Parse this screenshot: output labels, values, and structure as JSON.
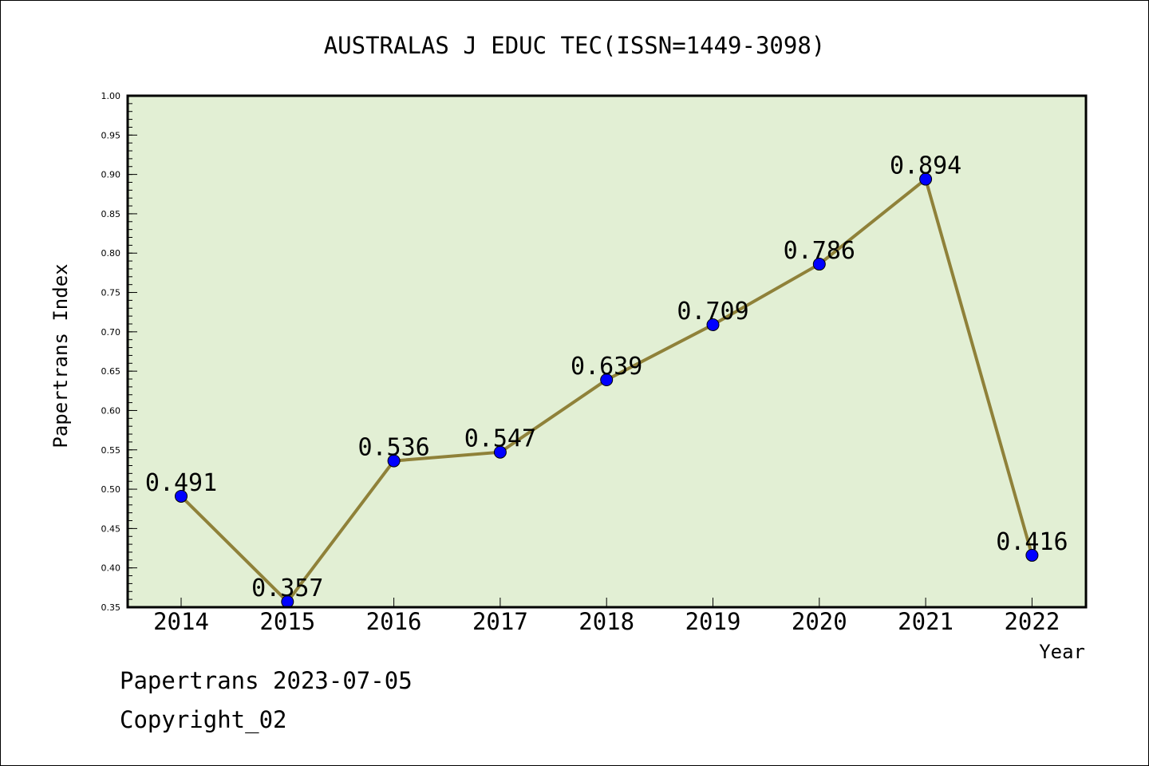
{
  "chart_data": {
    "type": "line",
    "title": "AUSTRALAS J EDUC TEC(ISSN=1449-3098)",
    "xlabel": "Year",
    "ylabel": "Papertrans Index",
    "categories": [
      "2014",
      "2015",
      "2016",
      "2017",
      "2018",
      "2019",
      "2020",
      "2021",
      "2022"
    ],
    "series": [
      {
        "values": [
          0.491,
          0.357,
          0.536,
          0.547,
          0.639,
          0.709,
          0.786,
          0.894,
          0.416
        ],
        "data_labels": [
          "0.491",
          "0.357",
          "0.536",
          "0.547",
          "0.639",
          "0.709",
          "0.786",
          "0.894",
          "0.416"
        ]
      }
    ],
    "ylim": [
      0.35,
      1.0
    ],
    "yticks": [
      "0.35",
      "0.40",
      "0.45",
      "0.50",
      "0.55",
      "0.60",
      "0.65",
      "0.70",
      "0.75",
      "0.80",
      "0.85",
      "0.90",
      "0.95",
      "1.00"
    ],
    "grid": false,
    "colors": {
      "plot_background": "#e2efd4",
      "line": "#8f8139",
      "marker": "#0000ff"
    }
  },
  "footer": {
    "date_line": "Papertrans 2023-07-05",
    "copyright": "Copyright_02"
  }
}
